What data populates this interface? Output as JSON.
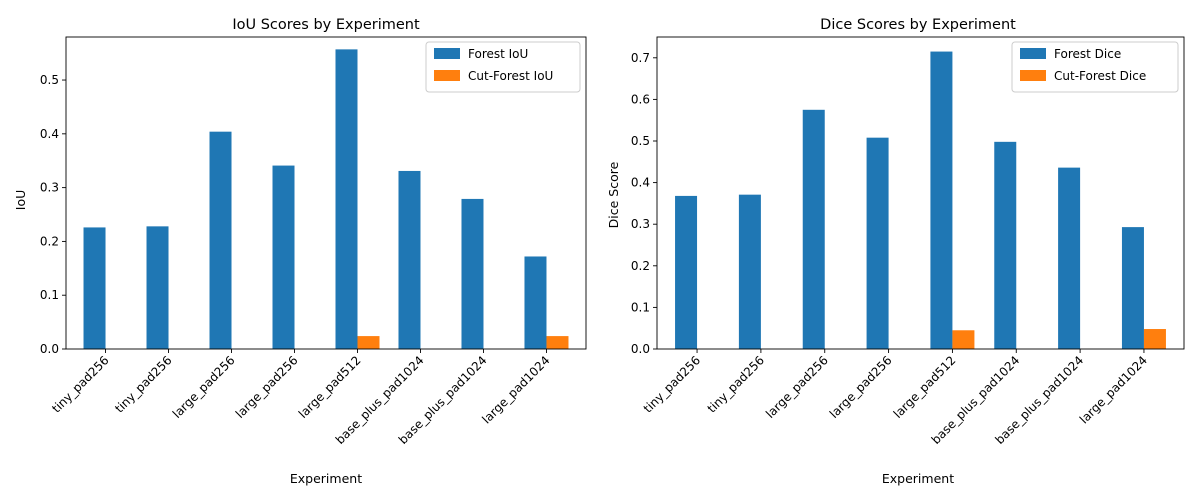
{
  "colors": {
    "forest": "#1f77b4",
    "cut_forest": "#ff7f0e"
  },
  "chart_data": [
    {
      "type": "bar",
      "title": "IoU Scores by Experiment",
      "xlabel": "Experiment",
      "ylabel": "IoU",
      "categories": [
        "tiny_pad256",
        "tiny_pad256",
        "large_pad256",
        "large_pad256",
        "large_pad512",
        "base_plus_pad1024",
        "base_plus_pad1024",
        "large_pad1024"
      ],
      "series": [
        {
          "name": "Forest IoU",
          "values": [
            0.226,
            0.228,
            0.404,
            0.341,
            0.557,
            0.331,
            0.279,
            0.172
          ]
        },
        {
          "name": "Cut-Forest IoU",
          "values": [
            0,
            0,
            0,
            0,
            0.024,
            0,
            0,
            0.024
          ]
        }
      ],
      "ylim": [
        0,
        0.58
      ],
      "yticks": [
        "0.0",
        "0.1",
        "0.2",
        "0.3",
        "0.4",
        "0.5"
      ],
      "legend": "top-right",
      "grid": false
    },
    {
      "type": "bar",
      "title": "Dice Scores by Experiment",
      "xlabel": "Experiment",
      "ylabel": "Dice Score",
      "categories": [
        "tiny_pad256",
        "tiny_pad256",
        "large_pad256",
        "large_pad256",
        "large_pad512",
        "base_plus_pad1024",
        "base_plus_pad1024",
        "large_pad1024"
      ],
      "series": [
        {
          "name": "Forest Dice",
          "values": [
            0.368,
            0.371,
            0.575,
            0.508,
            0.715,
            0.498,
            0.436,
            0.293
          ]
        },
        {
          "name": "Cut-Forest Dice",
          "values": [
            0,
            0,
            0,
            0,
            0.045,
            0,
            0,
            0.048
          ]
        }
      ],
      "ylim": [
        0,
        0.75
      ],
      "yticks": [
        "0.0",
        "0.1",
        "0.2",
        "0.3",
        "0.4",
        "0.5",
        "0.6",
        "0.7"
      ],
      "legend": "top-right",
      "grid": false
    }
  ]
}
